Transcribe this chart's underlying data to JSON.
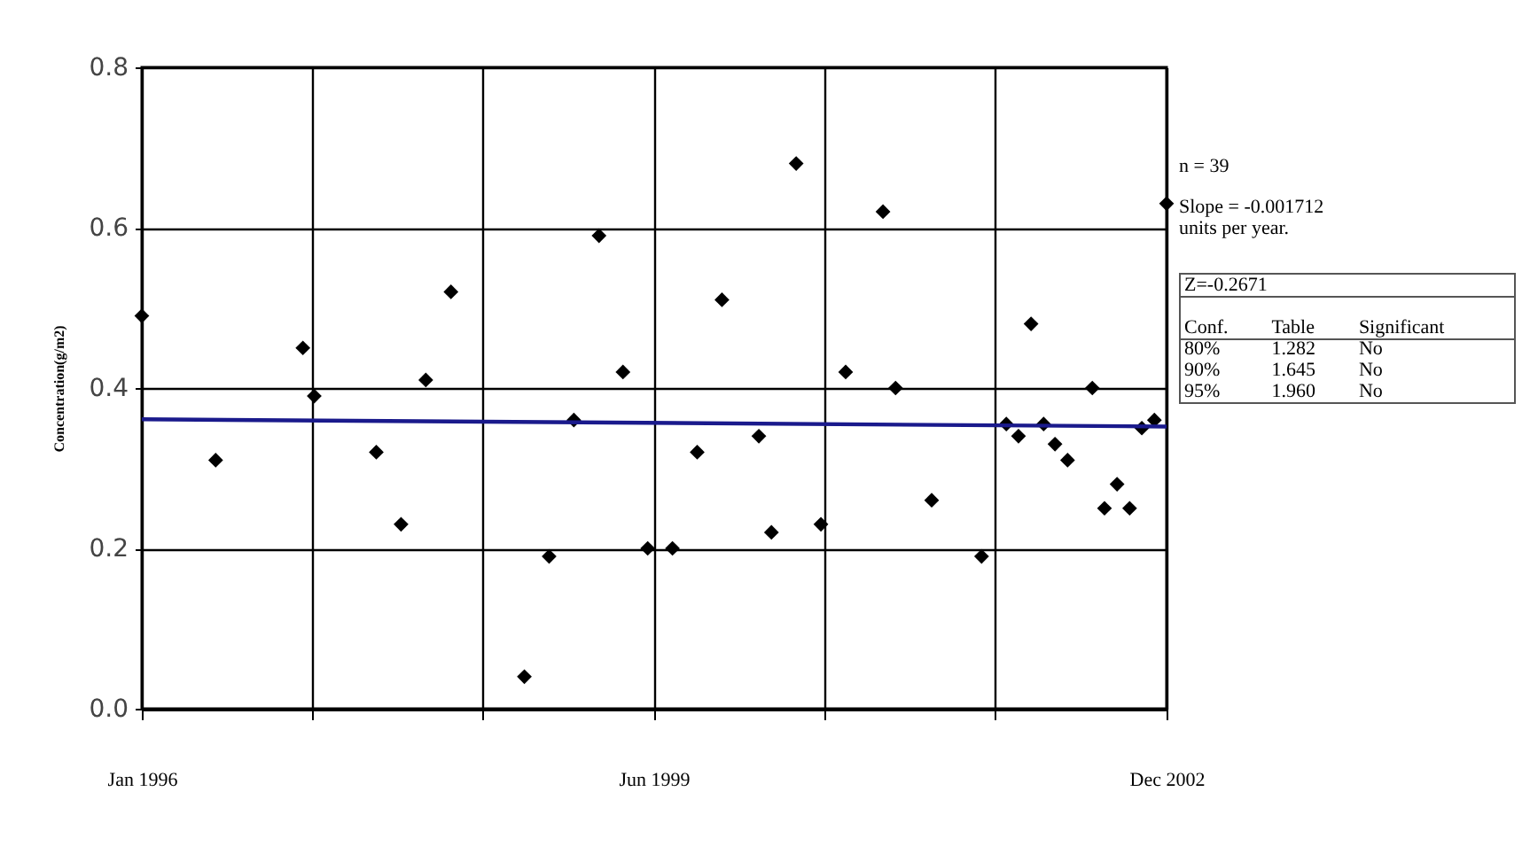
{
  "chart_data": {
    "type": "scatter",
    "ylabel": "Concentration(g/m2)",
    "xlim": [
      "1996-01",
      "2002-12"
    ],
    "ylim": [
      0,
      0.8
    ],
    "xticks": [
      {
        "value": "1996-01",
        "label": "Jan 1996"
      },
      {
        "value": "1997-02-25",
        "label": null
      },
      {
        "value": "1998-04-21",
        "label": null
      },
      {
        "value": "1999-06-16",
        "label": "Jun 1999"
      },
      {
        "value": "2000-08-10",
        "label": null
      },
      {
        "value": "2001-10-05",
        "label": null
      },
      {
        "value": "2002-12",
        "label": "Dec 2002"
      }
    ],
    "yticks": [
      {
        "value": 0,
        "label": "0.0"
      },
      {
        "value": 0.2,
        "label": "0.2"
      },
      {
        "value": 0.4,
        "label": "0.4"
      },
      {
        "value": 0.6,
        "label": "0.6"
      },
      {
        "value": 0.8,
        "label": "0.8"
      }
    ],
    "grid": true,
    "series": [
      {
        "type": "scatter",
        "marker": "diamond",
        "color": "#000000",
        "x": [
          "1996-01",
          "1996-07",
          "1997-02",
          "1997-03",
          "1997-08",
          "1997-10",
          "1997-12",
          "1998-02",
          "1998-08",
          "1998-10",
          "1998-12",
          "1999-02",
          "1999-04",
          "1999-06",
          "1999-08",
          "1999-10",
          "1999-12",
          "2000-03",
          "2000-04",
          "2000-06",
          "2000-08",
          "2000-10",
          "2001-01",
          "2001-02",
          "2001-05",
          "2001-09",
          "2001-11",
          "2001-12",
          "2002-01",
          "2002-02",
          "2002-03",
          "2002-04",
          "2002-06",
          "2002-07",
          "2002-08",
          "2002-09",
          "2002-10",
          "2002-11",
          "2002-12"
        ],
        "values": [
          0.49,
          0.31,
          0.45,
          0.39,
          0.32,
          0.23,
          0.41,
          0.52,
          0.04,
          0.19,
          0.36,
          0.59,
          0.42,
          0.2,
          0.2,
          0.32,
          0.51,
          0.34,
          0.22,
          0.68,
          0.23,
          0.42,
          0.62,
          0.4,
          0.26,
          0.19,
          0.355,
          0.34,
          0.48,
          0.355,
          0.33,
          0.31,
          0.4,
          0.25,
          0.28,
          0.25,
          0.35,
          0.36,
          0.63
        ]
      },
      {
        "type": "line",
        "color": "#1a1a8c",
        "x": [
          "1996-01",
          "2002-12"
        ],
        "values": [
          0.361,
          0.352
        ]
      }
    ],
    "annotations": [
      "n = 39",
      "Slope = -0.001712 units per year.",
      "Z=-0.2671",
      "Conf.",
      "Table",
      "Significant",
      "80%",
      "1.282",
      "No",
      "90%",
      "1.645",
      "No",
      "95%",
      "1.960",
      "No"
    ]
  }
}
